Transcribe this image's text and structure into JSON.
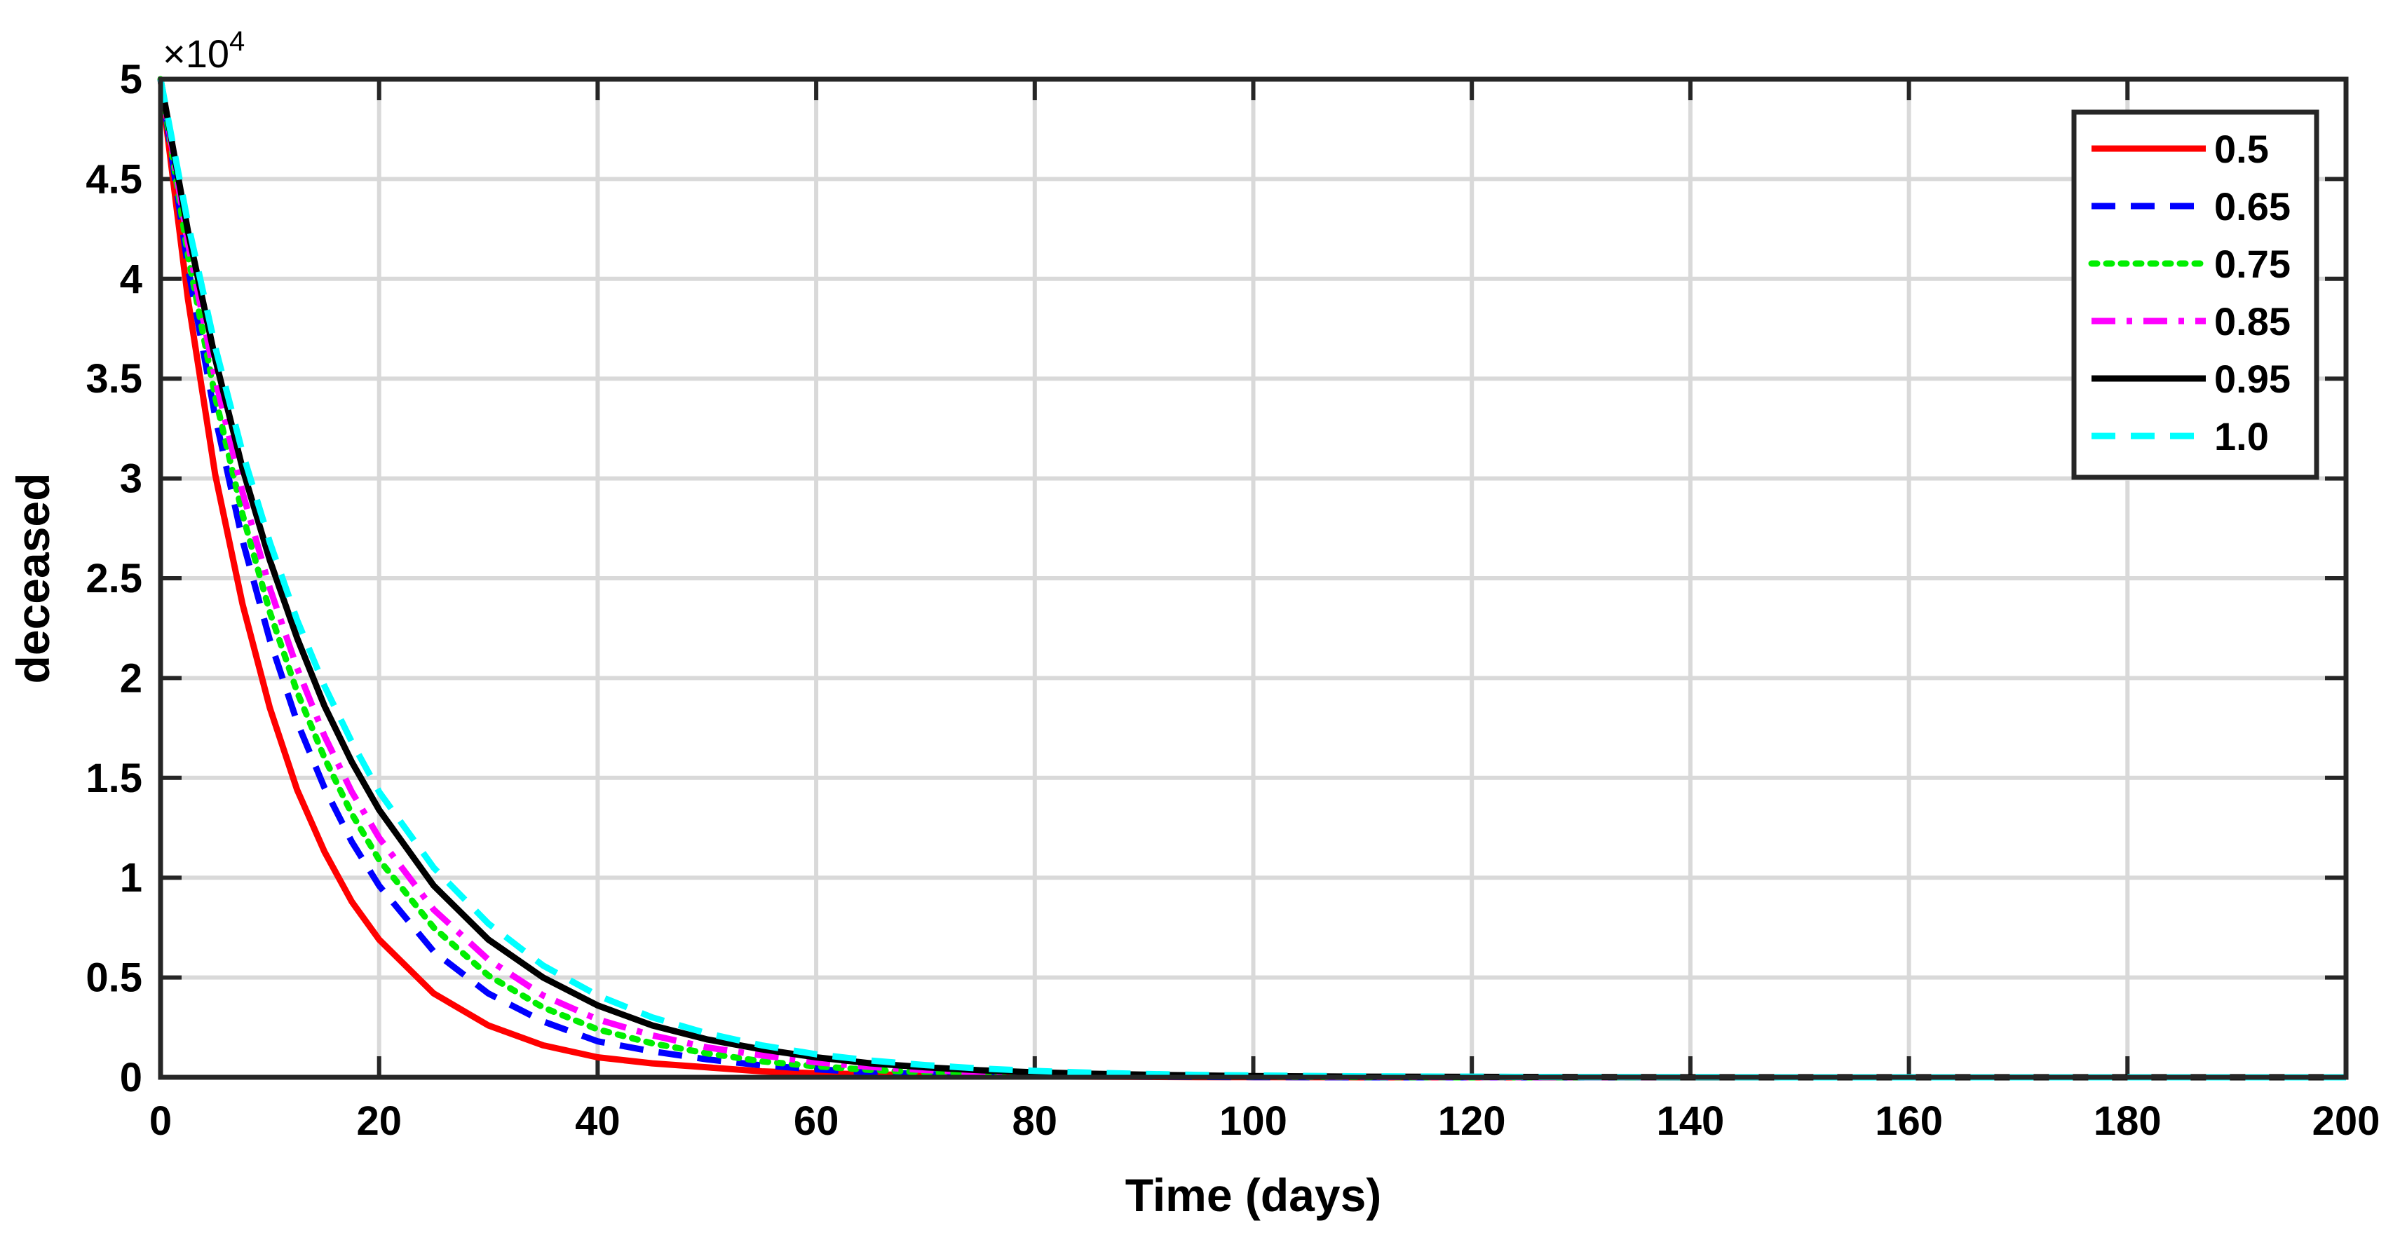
{
  "chart_data": {
    "type": "line",
    "title": "",
    "xlabel": "Time (days)",
    "ylabel": "deceased",
    "y_exponent_label": "×10",
    "y_exponent_power": "4",
    "xlim": [
      0,
      200
    ],
    "ylim": [
      0,
      5
    ],
    "x_ticks": [
      0,
      20,
      40,
      60,
      80,
      100,
      120,
      140,
      160,
      180,
      200
    ],
    "x_tick_labels": [
      "0",
      "20",
      "40",
      "60",
      "80",
      "100",
      "120",
      "140",
      "160",
      "180",
      "200"
    ],
    "y_ticks": [
      0,
      0.5,
      1,
      1.5,
      2,
      2.5,
      3,
      3.5,
      4,
      4.5,
      5
    ],
    "y_tick_labels": [
      "0",
      "0.5",
      "1",
      "1.5",
      "2",
      "2.5",
      "3",
      "3.5",
      "4",
      "4.5",
      "5"
    ],
    "grid": true,
    "legend_position": "top-right",
    "x": [
      0,
      2.5,
      5,
      7.5,
      10,
      12.5,
      15,
      17.5,
      20,
      25,
      30,
      35,
      40,
      45,
      50,
      55,
      60,
      65,
      70,
      75,
      80,
      85,
      90,
      95,
      100,
      110,
      120,
      130,
      140,
      150,
      160,
      170,
      180,
      190,
      200
    ],
    "series": [
      {
        "name": "0.5",
        "color": "#ff0000",
        "dash": "solid",
        "values": [
          5.0,
          3.9,
          3.02,
          2.37,
          1.85,
          1.44,
          1.13,
          0.88,
          0.69,
          0.42,
          0.26,
          0.16,
          0.1,
          0.07,
          0.05,
          0.03,
          0.02,
          0.015,
          0.01,
          0.006,
          0.004,
          0.003,
          0.002,
          0.001,
          0.001,
          0.0,
          0.0,
          0.0,
          0.0,
          0.0,
          0.0,
          0.0,
          0.0,
          0.0,
          0.0
        ]
      },
      {
        "name": "0.65",
        "color": "#0000ff",
        "dash": "dashed",
        "values": [
          5.0,
          4.06,
          3.31,
          2.69,
          2.19,
          1.78,
          1.45,
          1.18,
          0.96,
          0.63,
          0.42,
          0.28,
          0.18,
          0.13,
          0.09,
          0.06,
          0.04,
          0.025,
          0.016,
          0.011,
          0.007,
          0.005,
          0.003,
          0.002,
          0.001,
          0.0,
          0.0,
          0.0,
          0.0,
          0.0,
          0.0,
          0.0,
          0.0,
          0.0,
          0.0
        ]
      },
      {
        "name": "0.75",
        "color": "#00ee00",
        "dash": "dotted",
        "values": [
          5.0,
          4.12,
          3.41,
          2.82,
          2.33,
          1.93,
          1.6,
          1.32,
          1.09,
          0.75,
          0.51,
          0.35,
          0.24,
          0.17,
          0.12,
          0.08,
          0.055,
          0.037,
          0.025,
          0.017,
          0.012,
          0.008,
          0.005,
          0.004,
          0.003,
          0.001,
          0.0,
          0.0,
          0.0,
          0.0,
          0.0,
          0.0,
          0.0,
          0.0,
          0.0
        ]
      },
      {
        "name": "0.85",
        "color": "#ff00ff",
        "dash": "dashdot",
        "values": [
          5.0,
          4.18,
          3.5,
          2.93,
          2.45,
          2.05,
          1.71,
          1.43,
          1.2,
          0.84,
          0.59,
          0.41,
          0.29,
          0.21,
          0.15,
          0.11,
          0.075,
          0.052,
          0.036,
          0.025,
          0.018,
          0.012,
          0.008,
          0.006,
          0.004,
          0.002,
          0.001,
          0.0,
          0.0,
          0.0,
          0.0,
          0.0,
          0.0,
          0.0,
          0.0
        ]
      },
      {
        "name": "0.95",
        "color": "#000000",
        "dash": "solid",
        "values": [
          5.0,
          4.24,
          3.6,
          3.05,
          2.59,
          2.2,
          1.86,
          1.58,
          1.34,
          0.96,
          0.69,
          0.5,
          0.36,
          0.26,
          0.19,
          0.14,
          0.1,
          0.07,
          0.05,
          0.035,
          0.025,
          0.018,
          0.013,
          0.009,
          0.006,
          0.003,
          0.002,
          0.001,
          0.0,
          0.0,
          0.0,
          0.0,
          0.0,
          0.0,
          0.0
        ]
      },
      {
        "name": "1.0",
        "color": "#00ffff",
        "dash": "dashed",
        "values": [
          5.0,
          4.28,
          3.66,
          3.13,
          2.68,
          2.29,
          1.96,
          1.68,
          1.43,
          1.05,
          0.77,
          0.56,
          0.41,
          0.3,
          0.22,
          0.16,
          0.115,
          0.084,
          0.061,
          0.044,
          0.032,
          0.023,
          0.017,
          0.012,
          0.009,
          0.005,
          0.003,
          0.001,
          0.001,
          0.0,
          0.0,
          0.0,
          0.0,
          0.0,
          0.0
        ]
      }
    ]
  }
}
